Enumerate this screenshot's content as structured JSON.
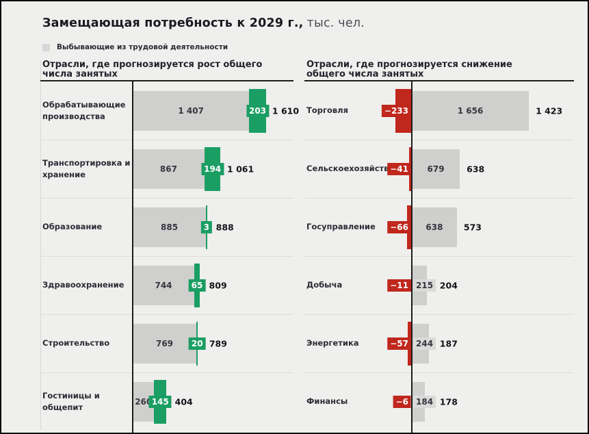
{
  "title": {
    "main": "Замещающая потребность к 2029 г.,",
    "unit": "тыс. чел."
  },
  "legend": {
    "label": "Выбывающие из трудовой деятельности",
    "swatch_color": "#d8d8d8"
  },
  "colors": {
    "background": "#efefed",
    "base_bar": "#cfcfce",
    "growth": "#1b9e63",
    "decline": "#c0271d",
    "axis": "#1b1b1b"
  },
  "chart_data": {
    "type": "bar",
    "title": "Замещающая потребность к 2029 г., тыс. чел.",
    "legend_entries": [
      "Выбывающие из трудовой деятельности"
    ],
    "orientation": "horizontal",
    "panels": [
      {
        "title": "Отрасли, где прогнозируется рост общего числа занятых",
        "direction": "growth",
        "rows": [
          {
            "category": "Обрабатывающие производства",
            "base": 1407,
            "base_label": "1 407",
            "delta": 203,
            "delta_label": "203",
            "total": 1610,
            "total_label": "1 610"
          },
          {
            "category": "Транспортировка и хранение",
            "base": 867,
            "base_label": "867",
            "delta": 194,
            "delta_label": "194",
            "total": 1061,
            "total_label": "1 061"
          },
          {
            "category": "Образование",
            "base": 885,
            "base_label": "885",
            "delta": 3,
            "delta_label": "3",
            "total": 888,
            "total_label": "888"
          },
          {
            "category": "Здравоохранение",
            "base": 744,
            "base_label": "744",
            "delta": 65,
            "delta_label": "65",
            "total": 809,
            "total_label": "809"
          },
          {
            "category": "Строительство",
            "base": 769,
            "base_label": "769",
            "delta": 20,
            "delta_label": "20",
            "total": 789,
            "total_label": "789"
          },
          {
            "category": "Гостиницы и общепит",
            "base": 260,
            "base_label": "260",
            "delta": 145,
            "delta_label": "145",
            "total": 404,
            "total_label": "404"
          }
        ]
      },
      {
        "title": "Отрасли, где прогнозируется снижение общего числа занятых",
        "direction": "decline",
        "rows": [
          {
            "category": "Торговля",
            "base": 1656,
            "base_label": "1 656",
            "delta": -233,
            "delta_label": "−233",
            "total": 1423,
            "total_label": "1 423"
          },
          {
            "category": "Сельскоехозяйство",
            "base": 679,
            "base_label": "679",
            "delta": -41,
            "delta_label": "−41",
            "total": 638,
            "total_label": "638"
          },
          {
            "category": "Госуправление",
            "base": 638,
            "base_label": "638",
            "delta": -66,
            "delta_label": "−66",
            "total": 573,
            "total_label": "573"
          },
          {
            "category": "Добыча",
            "base": 215,
            "base_label": "215",
            "delta": -11,
            "delta_label": "−11",
            "total": 204,
            "total_label": "204"
          },
          {
            "category": "Энергетика",
            "base": 244,
            "base_label": "244",
            "delta": -57,
            "delta_label": "−57",
            "total": 187,
            "total_label": "187"
          },
          {
            "category": "Финансы",
            "base": 184,
            "base_label": "184",
            "delta": -6,
            "delta_label": "−6",
            "total": 178,
            "total_label": "178"
          }
        ]
      }
    ]
  }
}
